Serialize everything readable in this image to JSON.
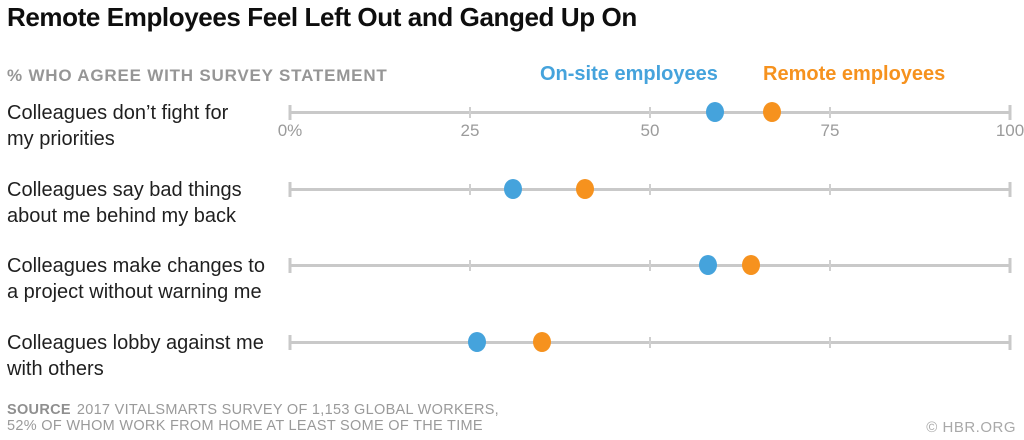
{
  "header": {
    "title": "Remote Employees Feel Left Out and Ganged Up On",
    "subtitle": "% WHO AGREE WITH SURVEY STATEMENT"
  },
  "legend": {
    "items": [
      {
        "label": "On-site employees",
        "color": "#45a3dc"
      },
      {
        "label": "Remote employees",
        "color": "#f6921e"
      }
    ]
  },
  "chart_data": {
    "type": "scatter",
    "variant": "dot-plot",
    "title": "Remote Employees Feel Left Out and Ganged Up On",
    "xlabel": "% who agree with survey statement",
    "categories": [
      "Colleagues don’t fight for my priorities",
      "Colleagues say bad things about me behind my back",
      "Colleagues make changes to a project without warning me",
      "Colleagues lobby against me with others"
    ],
    "category_lines": [
      [
        "Colleagues don’t fight for",
        "my priorities"
      ],
      [
        "Colleagues say bad things",
        "about me behind my back"
      ],
      [
        "Colleagues make changes to",
        "a project without warning me"
      ],
      [
        "Colleagues lobby against me",
        "with others"
      ]
    ],
    "series": [
      {
        "name": "On-site employees",
        "color": "#45a3dc",
        "values": [
          59,
          31,
          58,
          26
        ]
      },
      {
        "name": "Remote employees",
        "color": "#f6921e",
        "values": [
          67,
          41,
          64,
          35
        ]
      }
    ],
    "xlim": [
      0,
      100
    ],
    "xticks": [
      0,
      25,
      50,
      75,
      100
    ],
    "xtick_labels": [
      "0%",
      "25",
      "50",
      "75",
      "100"
    ],
    "unit": "%",
    "legend_position": "top",
    "grid": false
  },
  "footer": {
    "source_label": "SOURCE",
    "source_line1": "2017 VITALSMARTS SURVEY OF 1,153 GLOBAL WORKERS,",
    "source_line2": "52% OF WHOM WORK FROM HOME AT LEAST SOME OF THE TIME",
    "credit": "© HBR.ORG"
  },
  "colors": {
    "onsite": "#45a3dc",
    "remote": "#f6921e",
    "axis": "#c9c9c9",
    "tick_label": "#9b9b9b"
  }
}
